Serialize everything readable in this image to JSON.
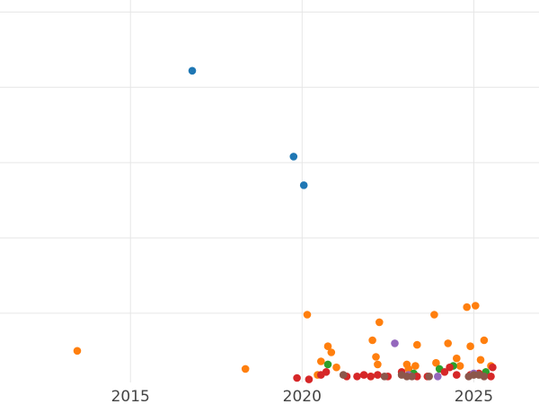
{
  "chart_data": {
    "type": "scatter",
    "title": "",
    "xlabel": "",
    "ylabel": "",
    "xlim": [
      2011.2,
      2026.9
    ],
    "ylim": [
      -0.6,
      24.8
    ],
    "x_ticks": [
      2015,
      2020,
      2025
    ],
    "x_tick_labels": [
      "2015",
      "2020",
      "2025"
    ],
    "y_ticks": [
      4,
      9,
      14,
      19,
      24
    ],
    "grid": true,
    "legend": "none",
    "series": [
      {
        "color": "#1f77b4",
        "x": [
          2016.8,
          2019.75,
          2020.05
        ],
        "y": [
          20.1,
          14.4,
          12.5
        ]
      },
      {
        "color": "#ff7f0e",
        "x": [
          2013.45,
          2018.35,
          2020.15,
          2020.55,
          2020.75,
          2020.85,
          2021.0,
          2022.05,
          2022.15,
          2022.2,
          2022.25,
          2023.05,
          2023.1,
          2023.3,
          2023.35,
          2023.85,
          2023.9,
          2024.25,
          2024.6,
          2024.8,
          2024.9,
          2025.05,
          2025.2,
          2025.3,
          2025.5,
          2020.45,
          2022.0,
          2024.5
        ],
        "y": [
          1.5,
          0.3,
          3.9,
          0.8,
          1.8,
          1.4,
          0.4,
          2.2,
          1.1,
          0.6,
          3.4,
          0.6,
          0.3,
          0.5,
          1.9,
          3.9,
          0.7,
          2.0,
          0.5,
          4.4,
          1.8,
          4.5,
          0.9,
          2.2,
          0.5,
          -0.1,
          -0.2,
          1.0
        ]
      },
      {
        "color": "#2ca02c",
        "x": [
          2020.75,
          2023.25,
          2024.0,
          2024.4,
          2025.35
        ],
        "y": [
          0.6,
          0.0,
          0.3,
          0.5,
          0.1
        ]
      },
      {
        "color": "#d62728",
        "x": [
          2019.85,
          2020.2,
          2020.55,
          2020.7,
          2021.3,
          2021.6,
          2021.8,
          2022.0,
          2022.2,
          2022.5,
          2022.9,
          2023.35,
          2023.65,
          2024.15,
          2024.3,
          2024.5,
          2024.9,
          2025.15,
          2025.55,
          2025.5
        ],
        "y": [
          -0.3,
          -0.4,
          -0.1,
          0.1,
          -0.2,
          -0.2,
          -0.1,
          -0.2,
          -0.1,
          -0.2,
          0.1,
          -0.2,
          -0.2,
          0.1,
          0.4,
          -0.1,
          -0.1,
          0.0,
          0.4,
          -0.2
        ]
      },
      {
        "color": "#9467bd",
        "x": [
          2022.7,
          2023.1,
          2023.95,
          2025.0
        ],
        "y": [
          2.0,
          -0.1,
          -0.2,
          0.0
        ]
      },
      {
        "color": "#8c564b",
        "x": [
          2021.2,
          2022.4,
          2022.9,
          2023.05,
          2023.2,
          2023.7,
          2024.85,
          2025.0,
          2025.15,
          2025.3
        ],
        "y": [
          -0.1,
          -0.2,
          -0.1,
          -0.2,
          -0.2,
          -0.2,
          -0.2,
          -0.1,
          -0.1,
          -0.2
        ]
      }
    ]
  }
}
